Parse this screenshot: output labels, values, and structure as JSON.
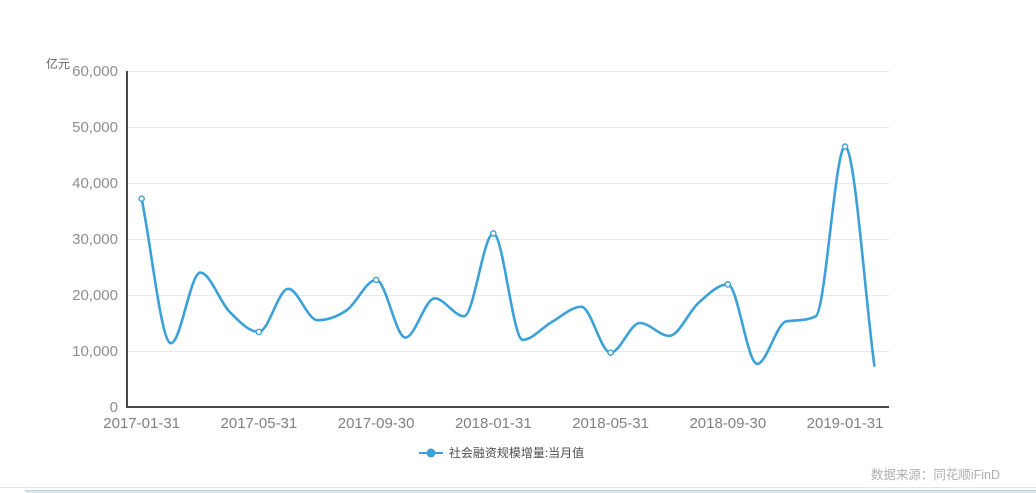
{
  "footer": {
    "source_text": "数据来源：同花顺iFinD"
  },
  "colors": {
    "line": "#3ca0d9",
    "marker_fill": "#ffffff",
    "axis_line": "#4a4a4a",
    "grid_line": "#e8e8e8",
    "y_label": "#8e8e8e",
    "x_label": "#808080",
    "unit_label": "#666666",
    "legend_text": "#4d4d4d",
    "footer_text": "#aeaeae"
  },
  "chart_data": {
    "type": "line",
    "title": "",
    "xlabel": "",
    "ylabel": "亿元",
    "ylim": [
      0,
      60000
    ],
    "y_ticks": [
      0,
      10000,
      20000,
      30000,
      40000,
      50000,
      60000
    ],
    "grid": true,
    "smooth": true,
    "legend_position": "bottom",
    "label_every": 4,
    "x_tick_labels": [
      "2017-01-31",
      "2017-05-31",
      "2017-09-30",
      "2018-01-31",
      "2018-05-31",
      "2018-09-30",
      "2019-01-31"
    ],
    "marker_indices": [
      0,
      4,
      8,
      12,
      16,
      20,
      24
    ],
    "categories": [
      "2017-01-31",
      "2017-02-28",
      "2017-03-31",
      "2017-04-30",
      "2017-05-31",
      "2017-06-30",
      "2017-07-31",
      "2017-08-31",
      "2017-09-30",
      "2017-10-31",
      "2017-11-30",
      "2017-12-31",
      "2018-01-31",
      "2018-02-28",
      "2018-03-31",
      "2018-04-30",
      "2018-05-31",
      "2018-06-30",
      "2018-07-31",
      "2018-08-31",
      "2018-09-30",
      "2018-10-31",
      "2018-11-30",
      "2018-12-31",
      "2019-01-31",
      "2019-02-28"
    ],
    "series": [
      {
        "name": "社会融资规模增量:当月值",
        "values": [
          37200,
          11400,
          24000,
          17000,
          13400,
          21100,
          15500,
          17300,
          22700,
          12400,
          19400,
          16200,
          31000,
          12000,
          15200,
          17900,
          9700,
          15000,
          12700,
          18600,
          21900,
          7700,
          15300,
          16200,
          46500,
          7400
        ]
      }
    ]
  }
}
